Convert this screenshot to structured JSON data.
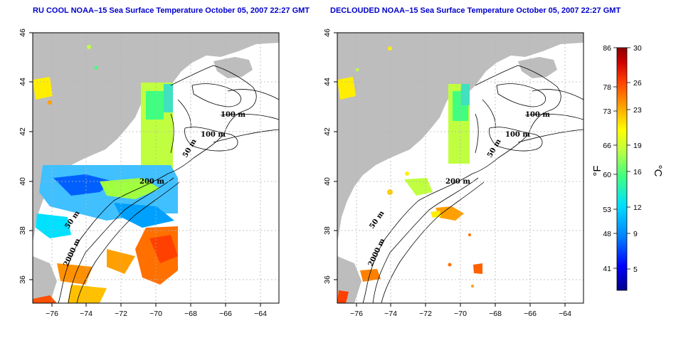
{
  "maps": [
    {
      "title": "RU COOL NOAA–15 Sea Surface Temperature October 05, 2007 22:27 GMT",
      "mode": "raw"
    },
    {
      "title": "DECLOUDED NOAA–15 Sea Surface Temperature October 05, 2007 22:27 GMT",
      "mode": "declouded"
    }
  ],
  "axes": {
    "lon_ticks": [
      "−76",
      "−74",
      "−72",
      "−70",
      "−68",
      "−66",
      "−64"
    ],
    "lat_ticks": [
      "46",
      "44",
      "42",
      "40",
      "38",
      "36"
    ],
    "lon_range": [
      -77,
      -63
    ],
    "lat_range": [
      35,
      46
    ]
  },
  "contour_labels": {
    "m100": "100 m",
    "m50": "50 m",
    "m200": "200 m",
    "m2000": "2000 m"
  },
  "colorbar": {
    "f_ticks": [
      "86",
      "78",
      "73",
      "66",
      "60",
      "53",
      "48",
      "41"
    ],
    "c_ticks": [
      "30",
      "26",
      "23",
      "19",
      "16",
      "12",
      "9",
      "5"
    ],
    "f_unit": "°F",
    "c_unit": "°C",
    "colors": [
      "#00008b",
      "#0000ff",
      "#0080ff",
      "#00e0ff",
      "#40ff80",
      "#c0ff40",
      "#ffff00",
      "#ffa000",
      "#ff4000",
      "#d00000",
      "#8b0000"
    ]
  },
  "colors": {
    "land": "#bdbdbd",
    "title": "#0000cc",
    "grid": "#b4b4b4"
  }
}
